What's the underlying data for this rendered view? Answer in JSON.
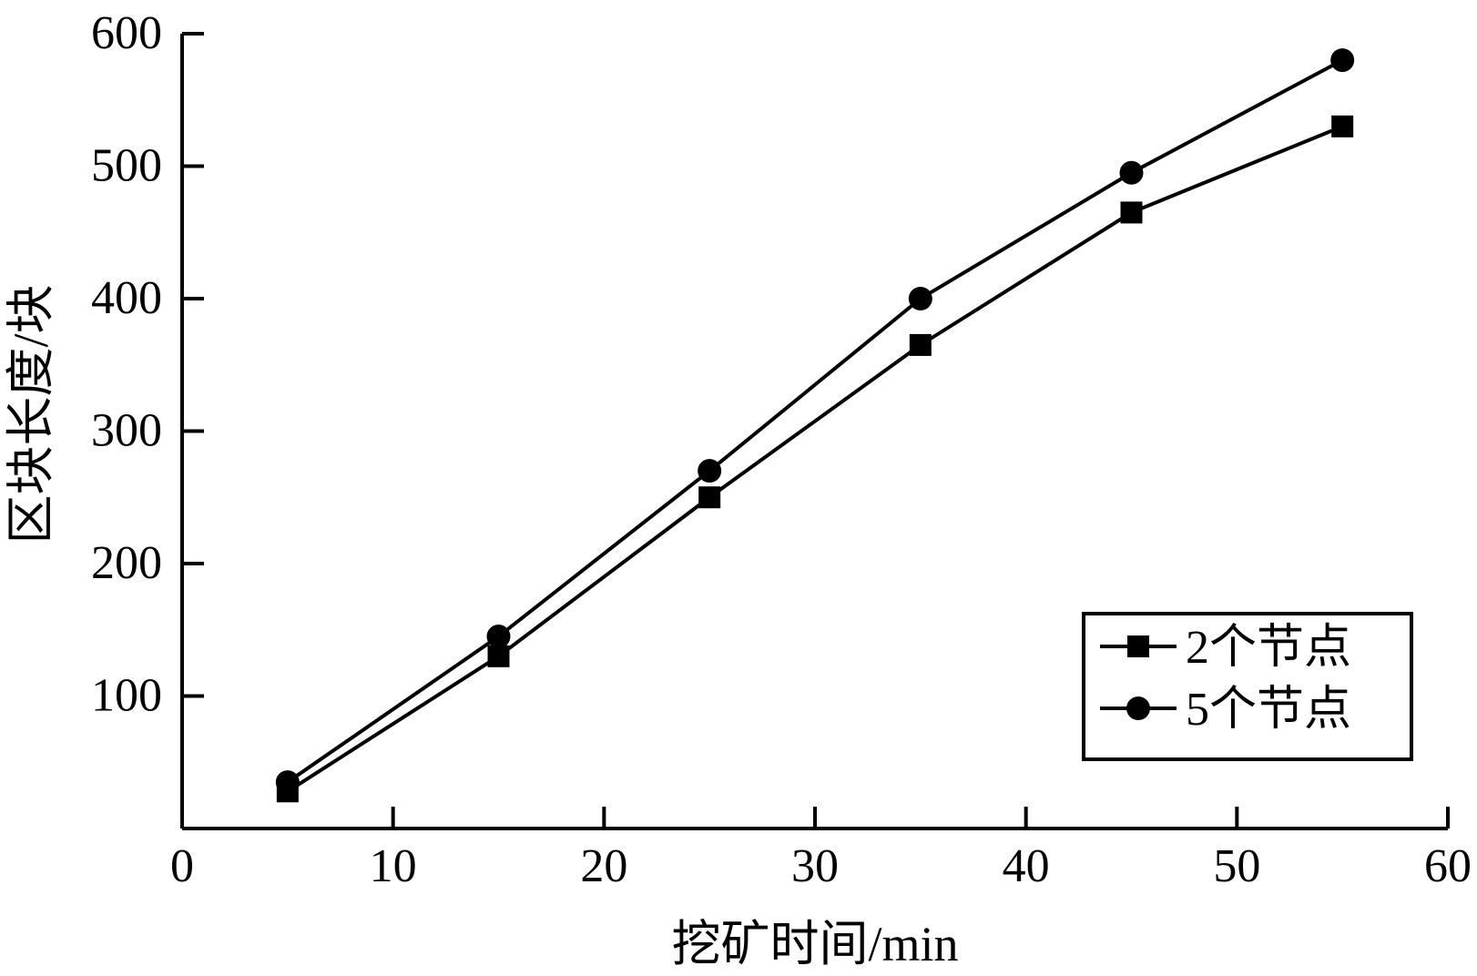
{
  "chart_data": {
    "type": "line",
    "title": "",
    "xlabel": "挖矿时间/min",
    "ylabel": "区块长度/块",
    "xlim": [
      0,
      60
    ],
    "ylim": [
      0,
      600
    ],
    "x_ticks": [
      0,
      10,
      20,
      30,
      40,
      50,
      60
    ],
    "y_ticks": [
      100,
      200,
      300,
      400,
      500,
      600
    ],
    "x": [
      5,
      15,
      25,
      35,
      45,
      55
    ],
    "series": [
      {
        "name": "2个节点",
        "marker": "square",
        "values": [
          28,
          130,
          250,
          365,
          465,
          530
        ]
      },
      {
        "name": "5个节点",
        "marker": "circle",
        "values": [
          35,
          145,
          270,
          400,
          495,
          580
        ]
      }
    ],
    "grid": false,
    "legend_position": "bottom-right",
    "color": "#000000"
  }
}
